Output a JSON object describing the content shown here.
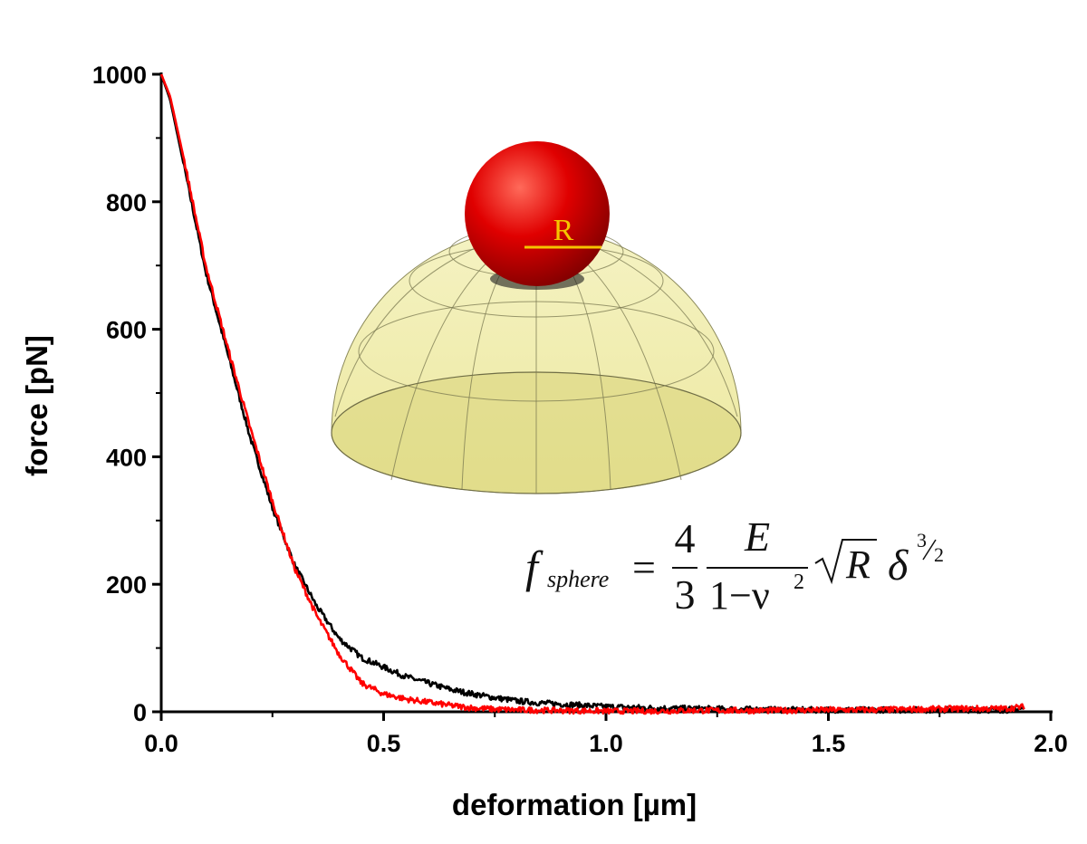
{
  "chart_data": {
    "type": "line",
    "title": "",
    "xlabel": "deformation [µm]",
    "ylabel": "force [pN]",
    "xlim": [
      0.0,
      2.0
    ],
    "ylim": [
      0,
      1000
    ],
    "x_ticks": [
      0.0,
      0.5,
      1.0,
      1.5,
      2.0
    ],
    "x_tick_labels": [
      "0.0",
      "0.5",
      "1.0",
      "1.5",
      "2.0"
    ],
    "y_ticks": [
      0,
      200,
      400,
      600,
      800,
      1000
    ],
    "y_tick_labels": [
      "0",
      "200",
      "400",
      "600",
      "800",
      "1000"
    ],
    "grid": false,
    "legend": "none",
    "series": [
      {
        "name": "black",
        "color": "#000000",
        "x": [
          0.0,
          0.02,
          0.05,
          0.1,
          0.15,
          0.2,
          0.25,
          0.3,
          0.35,
          0.4,
          0.45,
          0.5,
          0.55,
          0.6,
          0.65,
          0.7,
          0.75,
          0.8,
          0.85,
          0.9,
          0.95,
          1.0,
          1.1,
          1.2,
          1.3,
          1.4,
          1.5,
          1.6,
          1.7,
          1.8,
          1.9,
          1.94
        ],
        "y": [
          1000,
          960,
          860,
          690,
          560,
          430,
          320,
          230,
          165,
          115,
          85,
          70,
          55,
          45,
          35,
          28,
          22,
          17,
          14,
          12,
          10,
          8,
          6,
          5,
          4,
          3,
          3,
          3,
          3,
          3,
          3,
          5
        ]
      },
      {
        "name": "red",
        "color": "#ff0000",
        "x": [
          0.0,
          0.02,
          0.05,
          0.1,
          0.15,
          0.2,
          0.25,
          0.3,
          0.35,
          0.4,
          0.45,
          0.5,
          0.55,
          0.6,
          0.65,
          0.7,
          0.75,
          0.8,
          0.9,
          1.0,
          1.1,
          1.2,
          1.3,
          1.4,
          1.5,
          1.6,
          1.7,
          1.8,
          1.9,
          1.94
        ],
        "y": [
          1000,
          965,
          870,
          700,
          570,
          445,
          330,
          225,
          150,
          90,
          45,
          28,
          20,
          15,
          10,
          6,
          4,
          3,
          2,
          1,
          1,
          2,
          2,
          2,
          3,
          3,
          4,
          5,
          5,
          8
        ]
      }
    ],
    "annotations": {
      "sphere_label": "R",
      "equation": {
        "f": "f",
        "sub": "sphere",
        "equals": "=",
        "num1": "4",
        "den1": "3",
        "num2": "E",
        "den2": "1−ν",
        "den2_exp": "2",
        "sqrt_arg": "R",
        "delta": "δ",
        "exp_num": "3",
        "exp_den": "2"
      }
    }
  }
}
